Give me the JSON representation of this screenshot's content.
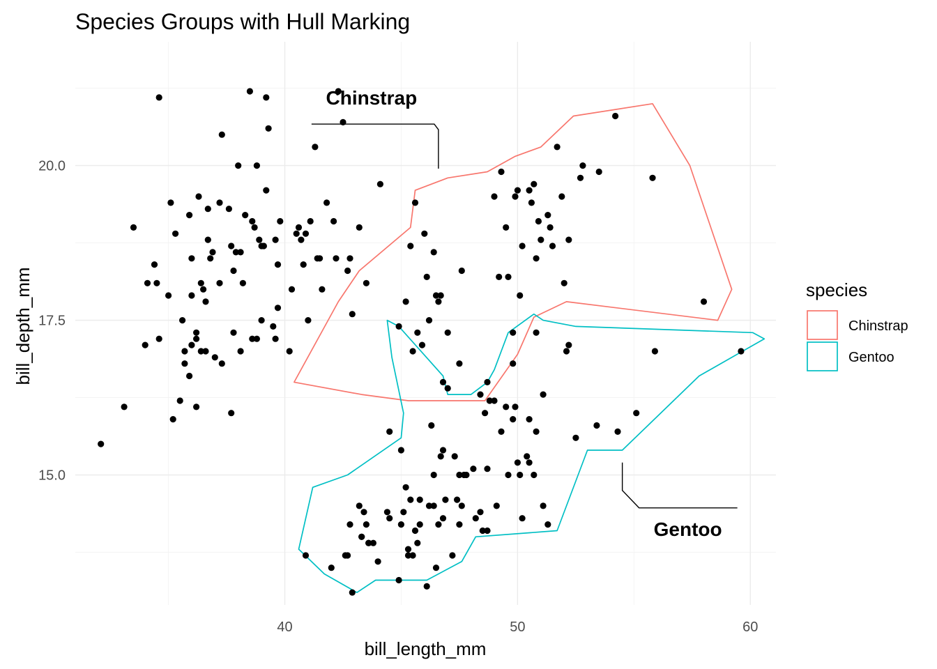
{
  "chart_data": {
    "type": "scatter",
    "title": "Species Groups with Hull Marking",
    "xlabel": "bill_length_mm",
    "ylabel": "bill_depth_mm",
    "xlim": [
      31.0,
      61.1
    ],
    "ylim": [
      12.9,
      22.0
    ],
    "x_ticks": [
      40,
      50,
      60
    ],
    "x_tick_labels": [
      "40",
      "50",
      "60"
    ],
    "y_ticks": [
      15.0,
      17.5,
      20.0
    ],
    "y_tick_labels": [
      "15.0",
      "17.5",
      "20.0"
    ],
    "grid": true,
    "legend": {
      "title": "species",
      "position": "right",
      "entries": [
        {
          "label": "Chinstrap",
          "color": "#F8766D"
        },
        {
          "label": "Gentoo",
          "color": "#00BFC4"
        }
      ]
    },
    "annotations": [
      {
        "label": "Chinstrap",
        "x": 46.6,
        "y": 19.95
      },
      {
        "label": "Gentoo",
        "x": 54.5,
        "y": 15.2
      }
    ],
    "hulls": [
      {
        "name": "Chinstrap",
        "color": "#F8766D",
        "points": [
          [
            40.4,
            16.5
          ],
          [
            42.3,
            17.8
          ],
          [
            43.2,
            18.3
          ],
          [
            45.4,
            19.0
          ],
          [
            45.6,
            19.6
          ],
          [
            47.0,
            19.8
          ],
          [
            48.7,
            19.9
          ],
          [
            49.9,
            20.15
          ],
          [
            51.0,
            20.3
          ],
          [
            52.4,
            20.8
          ],
          [
            55.8,
            21.0
          ],
          [
            57.4,
            20.0
          ],
          [
            59.2,
            18.0
          ],
          [
            58.6,
            17.5
          ],
          [
            52.1,
            17.8
          ],
          [
            50.7,
            17.55
          ],
          [
            50.0,
            16.95
          ],
          [
            48.6,
            16.2
          ],
          [
            47.6,
            16.2
          ],
          [
            45.3,
            16.2
          ],
          [
            43.3,
            16.3
          ],
          [
            40.4,
            16.5
          ]
        ]
      },
      {
        "name": "Gentoo",
        "color": "#00BFC4",
        "points": [
          [
            44.9,
            17.4
          ],
          [
            44.4,
            17.5
          ],
          [
            44.6,
            16.9
          ],
          [
            45.1,
            16.0
          ],
          [
            45.0,
            15.6
          ],
          [
            42.7,
            15.0
          ],
          [
            41.2,
            14.8
          ],
          [
            40.6,
            13.8
          ],
          [
            41.7,
            13.4
          ],
          [
            43.1,
            13.1
          ],
          [
            43.9,
            13.3
          ],
          [
            46.1,
            13.3
          ],
          [
            47.6,
            13.6
          ],
          [
            48.2,
            14.0
          ],
          [
            51.7,
            14.1
          ],
          [
            53.0,
            15.4
          ],
          [
            54.5,
            15.4
          ],
          [
            55.6,
            15.8
          ],
          [
            57.8,
            16.6
          ],
          [
            60.6,
            17.2
          ],
          [
            60.1,
            17.3
          ],
          [
            52.5,
            17.4
          ],
          [
            51.1,
            17.5
          ],
          [
            50.7,
            17.6
          ],
          [
            49.6,
            17.3
          ],
          [
            49.0,
            16.7
          ],
          [
            48.7,
            16.5
          ],
          [
            48.0,
            16.3
          ],
          [
            47.0,
            16.3
          ],
          [
            46.8,
            16.6
          ],
          [
            44.9,
            17.4
          ]
        ]
      }
    ],
    "points": [
      [
        32.1,
        15.5
      ],
      [
        33.1,
        16.1
      ],
      [
        33.5,
        19.0
      ],
      [
        34.0,
        17.1
      ],
      [
        34.1,
        18.1
      ],
      [
        34.4,
        18.4
      ],
      [
        34.5,
        18.1
      ],
      [
        34.6,
        21.1
      ],
      [
        34.6,
        17.2
      ],
      [
        35.0,
        17.9
      ],
      [
        35.1,
        19.4
      ],
      [
        35.2,
        15.9
      ],
      [
        35.3,
        18.9
      ],
      [
        35.5,
        16.2
      ],
      [
        35.6,
        17.5
      ],
      [
        35.7,
        17.0
      ],
      [
        35.7,
        16.8
      ],
      [
        35.9,
        19.2
      ],
      [
        35.9,
        16.6
      ],
      [
        36.0,
        18.5
      ],
      [
        36.0,
        17.9
      ],
      [
        36.0,
        17.1
      ],
      [
        36.2,
        17.3
      ],
      [
        36.2,
        17.2
      ],
      [
        36.2,
        16.1
      ],
      [
        36.3,
        19.5
      ],
      [
        36.4,
        18.1
      ],
      [
        36.4,
        17.0
      ],
      [
        36.5,
        18.0
      ],
      [
        36.6,
        17.8
      ],
      [
        36.6,
        17.0
      ],
      [
        36.7,
        18.8
      ],
      [
        36.7,
        19.3
      ],
      [
        36.8,
        18.5
      ],
      [
        36.9,
        18.6
      ],
      [
        37.0,
        16.9
      ],
      [
        37.2,
        18.1
      ],
      [
        37.2,
        19.4
      ],
      [
        37.3,
        20.5
      ],
      [
        37.3,
        16.8
      ],
      [
        37.6,
        19.3
      ],
      [
        37.7,
        18.7
      ],
      [
        37.7,
        16.0
      ],
      [
        37.8,
        18.3
      ],
      [
        37.8,
        17.3
      ],
      [
        37.9,
        18.6
      ],
      [
        38.0,
        20.0
      ],
      [
        38.1,
        18.6
      ],
      [
        38.1,
        17.0
      ],
      [
        38.2,
        18.1
      ],
      [
        38.3,
        19.2
      ],
      [
        38.5,
        21.2
      ],
      [
        38.6,
        17.2
      ],
      [
        38.6,
        19.1
      ],
      [
        38.7,
        19.0
      ],
      [
        38.8,
        17.2
      ],
      [
        38.8,
        20.0
      ],
      [
        38.9,
        18.8
      ],
      [
        39.0,
        17.5
      ],
      [
        39.0,
        18.7
      ],
      [
        39.1,
        18.7
      ],
      [
        39.2,
        21.1
      ],
      [
        39.2,
        19.6
      ],
      [
        39.3,
        20.6
      ],
      [
        39.5,
        17.4
      ],
      [
        39.6,
        17.2
      ],
      [
        39.6,
        18.8
      ],
      [
        39.7,
        18.4
      ],
      [
        39.7,
        17.7
      ],
      [
        39.8,
        19.1
      ],
      [
        40.2,
        17.0
      ],
      [
        40.3,
        18.0
      ],
      [
        40.5,
        18.9
      ],
      [
        40.6,
        19.0
      ],
      [
        40.7,
        18.8
      ],
      [
        40.8,
        18.4
      ],
      [
        40.9,
        18.9
      ],
      [
        41.0,
        17.5
      ],
      [
        41.1,
        19.1
      ],
      [
        41.3,
        20.3
      ],
      [
        41.4,
        18.5
      ],
      [
        41.5,
        18.5
      ],
      [
        41.6,
        18.0
      ],
      [
        41.8,
        19.4
      ],
      [
        42.1,
        19.1
      ],
      [
        42.2,
        18.5
      ],
      [
        42.3,
        21.2
      ],
      [
        42.5,
        20.7
      ],
      [
        42.7,
        18.3
      ],
      [
        42.8,
        18.5
      ],
      [
        42.9,
        17.6
      ],
      [
        43.2,
        19.0
      ],
      [
        43.5,
        18.1
      ],
      [
        44.1,
        19.7
      ],
      [
        45.2,
        17.8
      ],
      [
        45.4,
        18.7
      ],
      [
        45.5,
        17.0
      ],
      [
        45.6,
        19.4
      ],
      [
        45.7,
        17.3
      ],
      [
        45.9,
        17.1
      ],
      [
        46.0,
        18.9
      ],
      [
        46.1,
        18.2
      ],
      [
        46.2,
        17.5
      ],
      [
        46.4,
        18.6
      ],
      [
        46.5,
        17.9
      ],
      [
        46.6,
        17.8
      ],
      [
        46.7,
        17.9
      ],
      [
        46.8,
        16.5
      ],
      [
        47.0,
        17.3
      ],
      [
        47.5,
        16.8
      ],
      [
        47.6,
        18.3
      ],
      [
        49.0,
        19.5
      ],
      [
        49.2,
        18.2
      ],
      [
        49.3,
        19.9
      ],
      [
        49.5,
        19.0
      ],
      [
        49.6,
        18.2
      ],
      [
        49.8,
        17.3
      ],
      [
        49.9,
        19.5
      ],
      [
        50.0,
        19.6
      ],
      [
        50.1,
        17.9
      ],
      [
        50.2,
        18.7
      ],
      [
        50.5,
        19.6
      ],
      [
        50.6,
        19.4
      ],
      [
        50.7,
        19.7
      ],
      [
        50.8,
        18.5
      ],
      [
        50.9,
        19.1
      ],
      [
        51.0,
        18.8
      ],
      [
        51.3,
        19.2
      ],
      [
        51.4,
        19.0
      ],
      [
        51.5,
        18.7
      ],
      [
        51.7,
        20.3
      ],
      [
        51.9,
        19.5
      ],
      [
        52.0,
        18.1
      ],
      [
        52.2,
        18.8
      ],
      [
        52.7,
        19.8
      ],
      [
        52.8,
        20.0
      ],
      [
        53.5,
        19.9
      ],
      [
        54.2,
        20.8
      ],
      [
        55.8,
        19.8
      ],
      [
        58.0,
        17.8
      ],
      [
        40.9,
        13.7
      ],
      [
        42.0,
        13.5
      ],
      [
        42.6,
        13.7
      ],
      [
        42.7,
        13.7
      ],
      [
        42.8,
        14.2
      ],
      [
        42.9,
        13.1
      ],
      [
        43.2,
        14.5
      ],
      [
        43.3,
        14.0
      ],
      [
        43.4,
        14.4
      ],
      [
        43.5,
        14.2
      ],
      [
        43.6,
        13.9
      ],
      [
        43.8,
        13.9
      ],
      [
        44.0,
        13.6
      ],
      [
        44.4,
        14.4
      ],
      [
        44.5,
        14.3
      ],
      [
        44.9,
        13.3
      ],
      [
        45.0,
        14.2
      ],
      [
        45.1,
        14.4
      ],
      [
        45.2,
        14.8
      ],
      [
        45.3,
        13.8
      ],
      [
        45.4,
        14.6
      ],
      [
        45.5,
        13.7
      ],
      [
        45.6,
        14.1
      ],
      [
        45.7,
        13.9
      ],
      [
        45.8,
        14.6
      ],
      [
        46.1,
        13.2
      ],
      [
        46.2,
        14.5
      ],
      [
        46.3,
        15.8
      ],
      [
        46.4,
        15.0
      ],
      [
        46.5,
        13.5
      ],
      [
        46.6,
        14.2
      ],
      [
        46.8,
        14.3
      ],
      [
        47.2,
        13.7
      ],
      [
        47.4,
        14.6
      ],
      [
        47.6,
        14.5
      ],
      [
        47.8,
        15.0
      ],
      [
        48.1,
        15.1
      ],
      [
        48.2,
        14.3
      ],
      [
        48.4,
        14.4
      ],
      [
        48.5,
        14.1
      ],
      [
        48.7,
        15.1
      ],
      [
        49.1,
        14.5
      ],
      [
        49.5,
        16.1
      ],
      [
        49.8,
        15.9
      ],
      [
        50.0,
        15.2
      ],
      [
        50.1,
        15.0
      ],
      [
        50.2,
        14.3
      ],
      [
        50.4,
        15.3
      ],
      [
        50.5,
        15.9
      ],
      [
        50.7,
        15.0
      ],
      [
        50.8,
        15.7
      ],
      [
        51.1,
        16.3
      ],
      [
        51.3,
        14.2
      ],
      [
        52.1,
        17.0
      ],
      [
        52.2,
        17.1
      ],
      [
        54.3,
        15.7
      ],
      [
        55.1,
        16.0
      ],
      [
        55.9,
        17.0
      ],
      [
        59.6,
        17.0
      ],
      [
        44.9,
        17.4
      ],
      [
        47.0,
        16.4
      ],
      [
        48.7,
        16.5
      ],
      [
        49.0,
        16.2
      ],
      [
        48.8,
        16.2
      ],
      [
        52.5,
        15.6
      ],
      [
        53.4,
        15.8
      ],
      [
        46.7,
        15.3
      ],
      [
        45.0,
        15.4
      ],
      [
        43.3,
        14.0
      ],
      [
        45.8,
        14.2
      ],
      [
        47.5,
        15.0
      ],
      [
        48.4,
        16.3
      ],
      [
        49.9,
        16.1
      ],
      [
        50.5,
        15.2
      ],
      [
        51.1,
        14.5
      ],
      [
        44.5,
        15.7
      ],
      [
        46.9,
        14.6
      ],
      [
        47.3,
        15.3
      ],
      [
        48.7,
        14.1
      ],
      [
        49.6,
        15.0
      ],
      [
        50.8,
        17.3
      ],
      [
        47.7,
        15.0
      ],
      [
        46.8,
        15.4
      ],
      [
        49.3,
        15.7
      ],
      [
        49.8,
        16.8
      ],
      [
        48.6,
        16.0
      ],
      [
        47.5,
        14.2
      ],
      [
        45.3,
        13.7
      ],
      [
        46.4,
        14.5
      ],
      [
        43.6,
        13.9
      ]
    ]
  }
}
